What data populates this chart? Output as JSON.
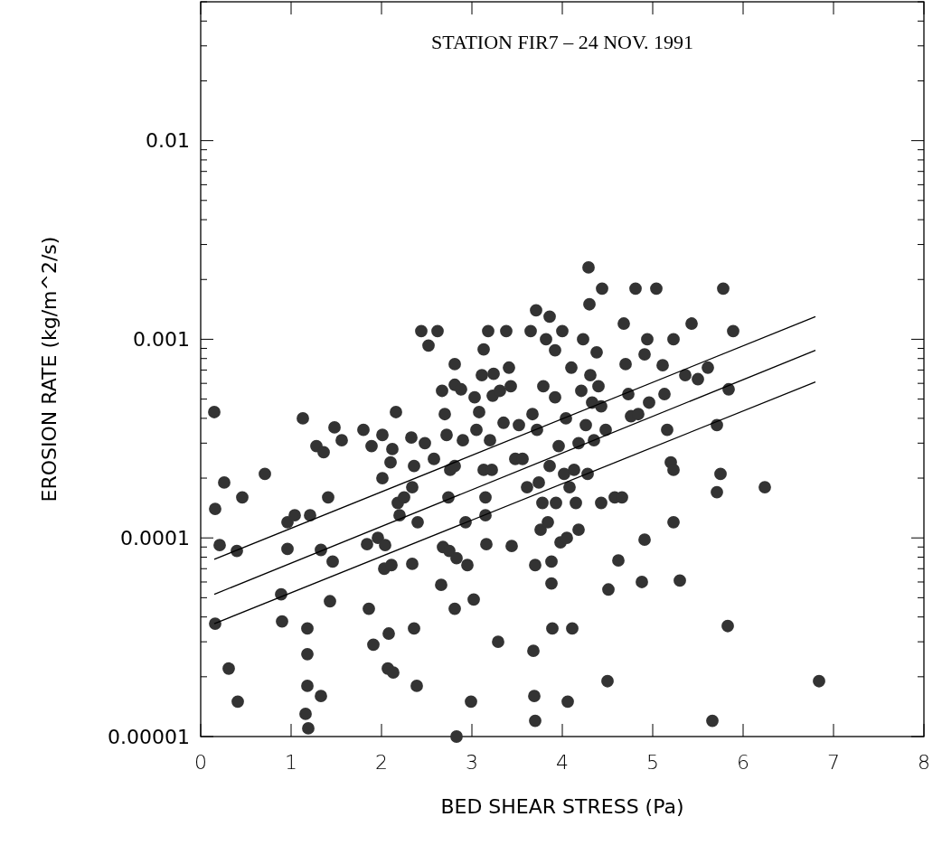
{
  "chart_data": {
    "type": "scatter",
    "title": "STATION FIR7 – 24 NOV. 1991",
    "xlabel": "BED SHEAR STRESS (Pa)",
    "ylabel": "EROSION RATE (kg/m^2/s)",
    "log": "y",
    "grid": false,
    "marker": "circle",
    "xlim": [
      0,
      8
    ],
    "xticks": [
      0,
      1,
      2,
      3,
      4,
      5,
      6,
      7,
      8
    ],
    "ylim": [
      1e-05,
      0.05
    ],
    "yticks": [
      {
        "value": 1e-05,
        "label": "0.00001"
      },
      {
        "value": 2e-05,
        "label": null
      },
      {
        "value": 3e-05,
        "label": null
      },
      {
        "value": 4e-05,
        "label": null
      },
      {
        "value": 5e-05,
        "label": null
      },
      {
        "value": 6e-05,
        "label": null
      },
      {
        "value": 7e-05,
        "label": null
      },
      {
        "value": 8e-05,
        "label": null
      },
      {
        "value": 9e-05,
        "label": null
      },
      {
        "value": 0.0001,
        "label": "0.0001"
      },
      {
        "value": 0.0002,
        "label": null
      },
      {
        "value": 0.0003,
        "label": null
      },
      {
        "value": 0.0004,
        "label": null
      },
      {
        "value": 0.0005,
        "label": null
      },
      {
        "value": 0.0006,
        "label": null
      },
      {
        "value": 0.0007,
        "label": null
      },
      {
        "value": 0.0008,
        "label": null
      },
      {
        "value": 0.0009,
        "label": null
      },
      {
        "value": 0.001,
        "label": "0.001"
      },
      {
        "value": 0.002,
        "label": null
      },
      {
        "value": 0.003,
        "label": null
      },
      {
        "value": 0.004,
        "label": null
      },
      {
        "value": 0.005,
        "label": null
      },
      {
        "value": 0.006,
        "label": null
      },
      {
        "value": 0.007,
        "label": null
      },
      {
        "value": 0.008,
        "label": null
      },
      {
        "value": 0.009,
        "label": null
      },
      {
        "value": 0.01,
        "label": "0.01"
      },
      {
        "value": 0.02,
        "label": null
      },
      {
        "value": 0.03,
        "label": null
      },
      {
        "value": 0.04,
        "label": null
      },
      {
        "value": 0.05,
        "label": null
      }
    ],
    "series": [
      {
        "color": "#333333",
        "x": [
          0.15,
          0.16,
          0.21,
          0.16,
          0.26,
          0.31,
          0.4,
          0.41,
          0.46,
          0.71,
          0.89,
          0.9,
          0.96,
          0.96,
          1.04,
          1.13,
          1.21,
          1.18,
          1.18,
          1.18,
          1.16,
          1.19,
          1.28,
          1.33,
          1.33,
          1.36,
          1.41,
          1.43,
          1.46,
          1.48,
          1.56,
          1.8,
          1.84,
          1.86,
          1.89,
          1.91,
          1.96,
          2.01,
          2.01,
          2.03,
          2.04,
          2.08,
          2.07,
          2.13,
          2.1,
          2.12,
          2.11,
          2.16,
          2.18,
          2.2,
          2.25,
          2.34,
          2.34,
          2.36,
          2.33,
          2.36,
          2.39,
          2.4,
          2.44,
          2.52,
          2.48,
          2.58,
          2.62,
          2.67,
          2.7,
          2.68,
          2.66,
          2.72,
          2.74,
          2.75,
          2.76,
          2.81,
          2.81,
          2.81,
          2.83,
          2.81,
          2.83,
          2.88,
          2.9,
          2.93,
          2.95,
          2.99,
          3.02,
          3.03,
          3.05,
          3.08,
          3.11,
          3.13,
          3.13,
          3.15,
          3.15,
          3.16,
          3.18,
          3.2,
          3.22,
          3.24,
          3.23,
          3.29,
          3.31,
          3.35,
          3.38,
          3.41,
          3.43,
          3.44,
          3.48,
          3.52,
          3.56,
          3.61,
          3.65,
          3.67,
          3.68,
          3.69,
          3.7,
          3.71,
          3.7,
          3.72,
          3.74,
          3.76,
          3.78,
          3.79,
          3.82,
          3.84,
          3.86,
          3.86,
          3.88,
          3.88,
          3.89,
          3.92,
          3.92,
          3.93,
          3.96,
          3.98,
          4.0,
          4.02,
          4.04,
          4.05,
          4.06,
          4.08,
          4.1,
          4.11,
          4.13,
          4.15,
          4.18,
          4.18,
          4.21,
          4.23,
          4.26,
          4.28,
          4.29,
          4.3,
          4.31,
          4.33,
          4.35,
          4.38,
          4.4,
          4.43,
          4.43,
          4.44,
          4.48,
          4.5,
          4.51,
          4.58,
          4.62,
          4.66,
          4.68,
          4.7,
          4.73,
          4.76,
          4.81,
          4.84,
          4.88,
          4.91,
          4.94,
          4.91,
          4.96,
          5.04,
          5.11,
          5.13,
          5.16,
          5.2,
          5.23,
          5.23,
          5.23,
          5.3,
          5.36,
          5.43,
          5.5,
          5.61,
          5.66,
          5.71,
          5.71,
          5.75,
          5.78,
          5.83,
          5.84,
          5.89,
          6.24,
          6.84
        ],
        "values": [
          0.00043,
          0.00014,
          9.2e-05,
          3.7e-05,
          0.00019,
          2.2e-05,
          8.6e-05,
          1.5e-05,
          0.00016,
          0.00021,
          5.2e-05,
          3.8e-05,
          8.8e-05,
          0.00012,
          0.00013,
          0.0004,
          0.00013,
          3.5e-05,
          2.6e-05,
          1.8e-05,
          1.3e-05,
          1.1e-05,
          0.00029,
          8.7e-05,
          1.6e-05,
          0.00027,
          0.00016,
          4.8e-05,
          7.6e-05,
          0.00036,
          0.00031,
          0.00035,
          9.3e-05,
          4.4e-05,
          0.00029,
          2.9e-05,
          0.0001,
          0.00033,
          0.0002,
          7e-05,
          9.2e-05,
          3.3e-05,
          2.2e-05,
          2.1e-05,
          0.00024,
          0.00028,
          7.3e-05,
          0.00043,
          0.00015,
          0.00013,
          0.00016,
          7.4e-05,
          0.00018,
          0.00023,
          0.00032,
          3.5e-05,
          1.8e-05,
          0.00012,
          0.0011,
          0.00093,
          0.0003,
          0.00025,
          0.0011,
          0.00055,
          0.00042,
          9e-05,
          5.8e-05,
          0.00033,
          0.00016,
          8.6e-05,
          0.00022,
          0.00023,
          0.00075,
          0.00059,
          7.9e-05,
          4.4e-05,
          1e-05,
          0.00056,
          0.00031,
          0.00012,
          7.3e-05,
          1.5e-05,
          4.9e-05,
          0.00051,
          0.00035,
          0.00043,
          0.00066,
          0.00089,
          0.00022,
          0.00016,
          0.00013,
          9.3e-05,
          0.0011,
          0.00031,
          0.00022,
          0.00067,
          0.00052,
          3e-05,
          0.00055,
          0.00038,
          0.0011,
          0.00072,
          0.00058,
          9.1e-05,
          0.00025,
          0.00037,
          0.00025,
          0.00018,
          0.0011,
          0.00042,
          2.7e-05,
          1.6e-05,
          1.2e-05,
          0.0014,
          7.3e-05,
          0.00035,
          0.00019,
          0.00011,
          0.00015,
          0.00058,
          0.001,
          0.00012,
          0.0013,
          0.00023,
          7.6e-05,
          5.9e-05,
          3.5e-05,
          0.00088,
          0.00051,
          0.00015,
          0.00029,
          9.5e-05,
          0.0011,
          0.00021,
          0.0004,
          0.0001,
          1.5e-05,
          0.00018,
          0.00072,
          3.5e-05,
          0.00022,
          0.00015,
          0.00011,
          0.0003,
          0.00055,
          0.001,
          0.00037,
          0.00021,
          0.0023,
          0.0015,
          0.00066,
          0.00048,
          0.00031,
          0.00086,
          0.00058,
          0.00046,
          0.00015,
          0.0018,
          0.00035,
          1.9e-05,
          5.5e-05,
          0.00016,
          7.7e-05,
          0.00016,
          0.0012,
          0.00075,
          0.00053,
          0.00041,
          0.0018,
          0.00042,
          6e-05,
          0.00084,
          0.001,
          9.8e-05,
          0.00048,
          0.0018,
          0.00074,
          0.00053,
          0.00035,
          0.00024,
          0.00022,
          0.00012,
          0.001,
          6.1e-05,
          0.00066,
          0.0012,
          0.00063,
          0.00072,
          1.2e-05,
          0.00037,
          0.00017,
          0.00021,
          0.0018,
          3.6e-05,
          0.00056,
          0.0011,
          0.00018,
          1.9e-05
        ]
      },
      {
        "type": "line",
        "color": "#000000",
        "marker": "none",
        "x": [
          0.15,
          6.8
        ],
        "values": [
          7.8e-05,
          0.0013
        ]
      },
      {
        "type": "line",
        "color": "#000000",
        "marker": "none",
        "x": [
          0.15,
          6.8
        ],
        "values": [
          5.2e-05,
          0.00088
        ]
      },
      {
        "type": "line",
        "color": "#000000",
        "marker": "none",
        "x": [
          0.15,
          6.8
        ],
        "values": [
          3.7e-05,
          0.00061
        ]
      }
    ]
  }
}
